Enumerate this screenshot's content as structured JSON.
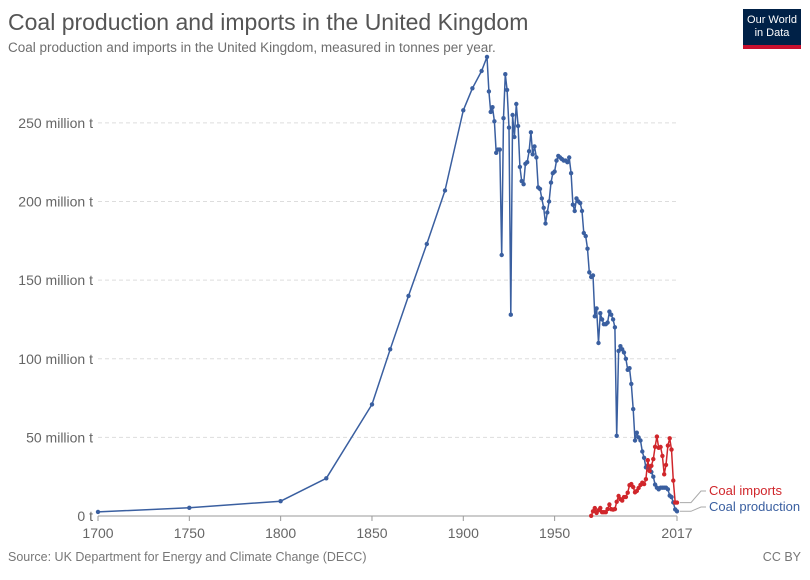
{
  "header": {
    "title": "Coal production and imports in the United Kingdom",
    "subtitle": "Coal production and imports in the United Kingdom, measured in tonnes per year."
  },
  "logo": {
    "line1": "Our World",
    "line2": "in Data"
  },
  "footer": {
    "source": "Source: UK Department for Energy and Climate Change (DECC)",
    "license": "CC BY"
  },
  "colors": {
    "production": "#3a5fa0",
    "imports": "#d0262b",
    "grid": "#dddddd",
    "axis_text": "#666666"
  },
  "chart_data": {
    "type": "line",
    "title": "Coal production and imports in the United Kingdom",
    "xlim": [
      1700,
      2017
    ],
    "ylim": [
      0,
      290000000
    ],
    "x_ticks": [
      1700,
      1750,
      1800,
      1850,
      1900,
      1950,
      2017
    ],
    "x_tick_labels": [
      "1700",
      "1750",
      "1800",
      "1850",
      "1900",
      "1950",
      "2017"
    ],
    "y_ticks": [
      0,
      50000000,
      100000000,
      150000000,
      200000000,
      250000000
    ],
    "y_tick_labels": [
      "0 t",
      "50 million t",
      "100 million t",
      "150 million t",
      "200 million t",
      "250 million t"
    ],
    "grid": "horizontal dashed",
    "legend": "inline labels at line ends",
    "series": [
      {
        "name": "Coal production",
        "color": "#3a5fa0",
        "x": [
          1700,
          1750,
          1800,
          1825,
          1850,
          1860,
          1870,
          1880,
          1890,
          1900,
          1905,
          1910,
          1913,
          1914,
          1915,
          1916,
          1917,
          1918,
          1919,
          1920,
          1921,
          1922,
          1923,
          1924,
          1925,
          1926,
          1927,
          1928,
          1929,
          1930,
          1931,
          1932,
          1933,
          1934,
          1935,
          1936,
          1937,
          1938,
          1939,
          1940,
          1941,
          1942,
          1943,
          1944,
          1945,
          1946,
          1947,
          1948,
          1949,
          1950,
          1951,
          1952,
          1953,
          1954,
          1955,
          1956,
          1957,
          1958,
          1959,
          1960,
          1961,
          1962,
          1963,
          1964,
          1965,
          1966,
          1967,
          1968,
          1969,
          1970,
          1971,
          1972,
          1973,
          1974,
          1975,
          1976,
          1977,
          1978,
          1979,
          1980,
          1981,
          1982,
          1983,
          1984,
          1985,
          1986,
          1987,
          1988,
          1989,
          1990,
          1991,
          1992,
          1993,
          1994,
          1995,
          1996,
          1997,
          1998,
          1999,
          2000,
          2001,
          2002,
          2003,
          2004,
          2005,
          2006,
          2007,
          2008,
          2009,
          2010,
          2011,
          2012,
          2013,
          2014,
          2015,
          2016,
          2017
        ],
        "y": [
          2600000,
          5200000,
          9400000,
          24000000,
          71000000,
          106000000,
          140000000,
          173000000,
          207000000,
          258000000,
          272000000,
          283000000,
          292000000,
          270000000,
          257000000,
          260000000,
          251000000,
          231000000,
          233000000,
          233000000,
          166000000,
          253000000,
          281000000,
          271000000,
          247000000,
          128000000,
          255000000,
          241000000,
          262000000,
          248000000,
          222000000,
          213000000,
          211000000,
          224000000,
          225000000,
          232000000,
          244000000,
          230000000,
          235000000,
          228000000,
          209000000,
          208000000,
          202000000,
          196000000,
          186000000,
          193000000,
          200000000,
          212000000,
          218000000,
          219000000,
          226000000,
          229000000,
          228000000,
          227000000,
          226000000,
          226000000,
          225000000,
          228000000,
          218000000,
          198000000,
          194000000,
          202000000,
          200000000,
          199000000,
          194000000,
          180000000,
          178000000,
          170000000,
          155000000,
          152000000,
          153000000,
          127000000,
          132000000,
          110000000,
          129000000,
          125000000,
          122000000,
          122000000,
          123000000,
          130000000,
          128000000,
          125000000,
          120000000,
          51000000,
          105000000,
          108000000,
          106000000,
          104000000,
          100000000,
          93000000,
          94000000,
          84000000,
          68000000,
          48000000,
          53000000,
          50000000,
          48000000,
          41000000,
          37000000,
          31000000,
          32000000,
          30000000,
          28000000,
          25000000,
          20000000,
          18000000,
          17000000,
          18000000,
          18000000,
          18000000,
          18000000,
          17000000,
          13000000,
          12000000,
          8600000,
          4200000,
          3000000
        ]
      },
      {
        "name": "Coal imports",
        "color": "#d0262b",
        "x": [
          1970,
          1971,
          1972,
          1973,
          1974,
          1975,
          1976,
          1977,
          1978,
          1979,
          1980,
          1981,
          1982,
          1983,
          1984,
          1985,
          1986,
          1987,
          1988,
          1989,
          1990,
          1991,
          1992,
          1993,
          1994,
          1995,
          1996,
          1997,
          1998,
          1999,
          2000,
          2001,
          2002,
          2003,
          2004,
          2005,
          2006,
          2007,
          2008,
          2009,
          2010,
          2011,
          2012,
          2013,
          2014,
          2015,
          2016,
          2017
        ],
        "y": [
          100000,
          3000000,
          5000000,
          2000000,
          3600000,
          5100000,
          2400000,
          2400000,
          2400000,
          4400000,
          7300000,
          4300000,
          4100000,
          4400000,
          9000000,
          12700000,
          10700000,
          9800000,
          12000000,
          12100000,
          14800000,
          19600000,
          20300000,
          18400000,
          15100000,
          15900000,
          17800000,
          19800000,
          21200000,
          20300000,
          23400000,
          35500000,
          28700000,
          31900000,
          36200000,
          44000000,
          50500000,
          43400000,
          43900000,
          38200000,
          26500000,
          32500000,
          44800000,
          49400000,
          42200000,
          22500000,
          8500000,
          8500000
        ]
      }
    ]
  }
}
